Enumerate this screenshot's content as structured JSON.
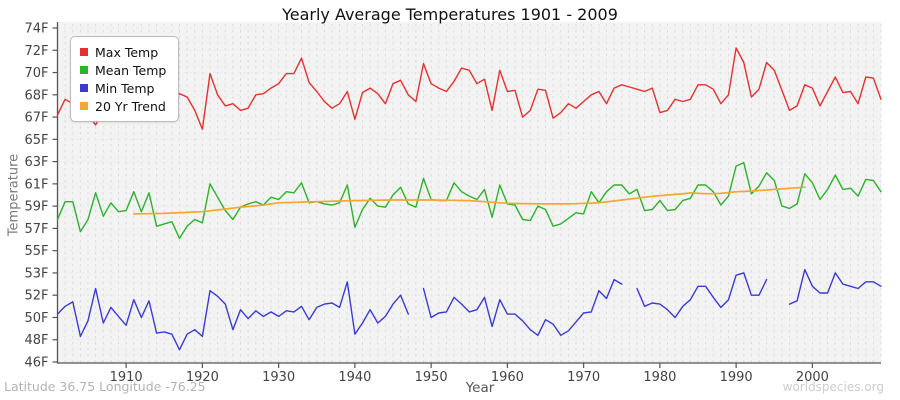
{
  "title": "Yearly Average Temperatures 1901 - 2009",
  "x_axis": {
    "label": "Year"
  },
  "y_axis": {
    "label": "Temperature"
  },
  "footer": {
    "left": "Latitude 36.75 Longitude -76.25",
    "right": "worldspecies.org"
  },
  "colors": {
    "page_bg": "#ffffff",
    "plot_bg": "#f3f3f3",
    "grid_v": "#dcdcdc",
    "grid_h": "#eaeaea",
    "axis": "#555555",
    "tick_text": "#444444",
    "legend_bg": "#ffffff",
    "legend_border": "#bbbbbb"
  },
  "chart_data": {
    "type": "line",
    "title": "Yearly Average Temperatures 1901 - 2009",
    "xlabel": "Year",
    "ylabel": "Temperature",
    "legend_position": "top-left",
    "grid": true,
    "x_start": 1901,
    "x_end": 2009,
    "x_step": 1,
    "x_ticks": [
      1910,
      1920,
      1930,
      1940,
      1950,
      1960,
      1970,
      1980,
      1990,
      2000
    ],
    "y_ticks": [
      74,
      72,
      70,
      68,
      67,
      65,
      63,
      61,
      59,
      57,
      55,
      53,
      52,
      50,
      48,
      46
    ],
    "y_tick_suffix": "F",
    "years": [
      1901,
      1902,
      1903,
      1904,
      1905,
      1906,
      1907,
      1908,
      1909,
      1910,
      1911,
      1912,
      1913,
      1914,
      1915,
      1916,
      1917,
      1918,
      1919,
      1920,
      1921,
      1922,
      1923,
      1924,
      1925,
      1926,
      1927,
      1928,
      1929,
      1930,
      1931,
      1932,
      1933,
      1934,
      1935,
      1936,
      1937,
      1938,
      1939,
      1940,
      1941,
      1942,
      1943,
      1944,
      1945,
      1946,
      1947,
      1948,
      1949,
      1950,
      1951,
      1952,
      1953,
      1954,
      1955,
      1956,
      1957,
      1958,
      1959,
      1960,
      1961,
      1962,
      1963,
      1964,
      1965,
      1966,
      1967,
      1968,
      1969,
      1970,
      1971,
      1972,
      1973,
      1974,
      1975,
      1976,
      1977,
      1978,
      1979,
      1980,
      1981,
      1982,
      1983,
      1984,
      1985,
      1986,
      1987,
      1988,
      1989,
      1990,
      1991,
      1992,
      1993,
      1994,
      1995,
      1996,
      1997,
      1998,
      1999,
      2000,
      2001,
      2002,
      2003,
      2004,
      2005,
      2006,
      2007,
      2008,
      2009
    ],
    "series": [
      {
        "name": "Max Temp",
        "color": "#e53030",
        "width": 1.4,
        "values": [
          67.1,
          67.8,
          67.6,
          67.9,
          67.1,
          66.3,
          67.3,
          67.9,
          68.3,
          67.6,
          67.4,
          68.1,
          68.0,
          68.3,
          67.9,
          67.7,
          68.1,
          67.9,
          67.3,
          65.9,
          69.9,
          68.0,
          67.5,
          67.6,
          67.3,
          67.4,
          68.0,
          68.1,
          68.6,
          69.0,
          69.9,
          69.9,
          71.3,
          69.1,
          68.3,
          67.7,
          67.4,
          67.6,
          68.3,
          66.8,
          68.2,
          68.6,
          68.1,
          67.6,
          69.0,
          69.3,
          68.0,
          67.7,
          70.8,
          69.0,
          68.6,
          68.3,
          69.2,
          70.4,
          70.2,
          69.0,
          69.4,
          67.3,
          70.2,
          68.3,
          68.4,
          67.0,
          67.3,
          68.5,
          68.4,
          66.9,
          67.2,
          67.6,
          67.4,
          67.7,
          68.0,
          68.3,
          67.6,
          68.6,
          68.9,
          68.7,
          68.5,
          68.3,
          68.6,
          67.2,
          67.3,
          67.8,
          67.7,
          67.8,
          68.9,
          68.9,
          68.5,
          67.6,
          68.0,
          72.2,
          70.9,
          67.9,
          68.5,
          70.9,
          70.2,
          68.4,
          67.3,
          67.5,
          68.9,
          68.6,
          67.5,
          68.3,
          69.6,
          68.2,
          68.3,
          67.6,
          69.6,
          69.5,
          67.8
        ]
      },
      {
        "name": "Mean Temp",
        "color": "#2db22d",
        "width": 1.4,
        "values": [
          57.8,
          59.4,
          59.4,
          56.7,
          57.8,
          60.2,
          58.1,
          59.3,
          58.5,
          58.6,
          60.3,
          58.5,
          60.2,
          57.2,
          57.4,
          57.6,
          56.1,
          57.2,
          57.8,
          57.5,
          61.0,
          59.8,
          58.6,
          57.8,
          58.9,
          59.2,
          59.4,
          59.1,
          59.8,
          59.6,
          60.3,
          60.2,
          61.1,
          59.3,
          59.4,
          59.2,
          59.1,
          59.3,
          60.9,
          57.1,
          58.7,
          59.7,
          59.0,
          58.9,
          60.0,
          60.7,
          59.2,
          58.9,
          61.5,
          59.6,
          59.5,
          59.5,
          61.1,
          60.3,
          59.9,
          59.6,
          60.5,
          58.0,
          60.9,
          59.2,
          59.1,
          57.8,
          57.7,
          59.0,
          58.7,
          57.2,
          57.4,
          57.9,
          58.4,
          58.3,
          60.3,
          59.3,
          60.3,
          60.9,
          60.9,
          60.1,
          60.5,
          58.6,
          58.7,
          59.5,
          58.6,
          58.7,
          59.5,
          59.7,
          60.9,
          60.9,
          60.3,
          59.1,
          59.9,
          62.6,
          62.9,
          60.1,
          60.8,
          62.0,
          61.3,
          59.0,
          58.8,
          59.2,
          61.9,
          61.1,
          59.6,
          60.5,
          61.8,
          60.5,
          60.6,
          59.9,
          61.4,
          61.3,
          60.3
        ]
      },
      {
        "name": "Min Temp",
        "color": "#3b3bd4",
        "width": 1.4,
        "values": [
          50.3,
          51.0,
          51.4,
          48.3,
          49.7,
          52.3,
          49.5,
          50.9,
          50.1,
          49.3,
          51.6,
          50.0,
          51.5,
          48.6,
          48.7,
          48.5,
          47.1,
          48.5,
          48.9,
          48.3,
          52.2,
          51.9,
          51.2,
          48.9,
          50.7,
          49.9,
          50.6,
          50.1,
          50.5,
          50.1,
          50.6,
          50.5,
          51.0,
          49.8,
          50.9,
          51.2,
          51.3,
          50.9,
          52.6,
          48.5,
          49.5,
          50.7,
          49.5,
          50.1,
          51.2,
          52.0,
          50.3,
          null,
          52.3,
          50.0,
          50.4,
          50.5,
          51.8,
          51.2,
          50.5,
          50.7,
          51.8,
          49.2,
          51.6,
          50.3,
          50.3,
          49.7,
          48.9,
          48.4,
          49.8,
          49.4,
          48.4,
          48.8,
          49.6,
          50.4,
          50.5,
          52.2,
          51.7,
          52.7,
          52.5,
          null,
          52.3,
          51.0,
          51.3,
          51.2,
          50.7,
          50.0,
          51.0,
          51.6,
          52.4,
          52.4,
          51.8,
          50.9,
          51.6,
          52.9,
          53.0,
          52.0,
          52.0,
          52.7,
          null,
          null,
          51.2,
          51.5,
          53.3,
          52.4,
          52.1,
          52.1,
          53.0,
          52.5,
          52.4,
          52.3,
          52.6,
          52.6,
          52.4
        ]
      },
      {
        "name": "20 Yr Trend",
        "color": "#f6a72f",
        "width": 1.7,
        "values": [
          null,
          null,
          null,
          null,
          null,
          null,
          null,
          null,
          null,
          null,
          58.3,
          58.31,
          58.32,
          58.34,
          58.35,
          58.38,
          58.41,
          58.44,
          58.47,
          58.5,
          58.58,
          58.66,
          58.74,
          58.82,
          58.9,
          58.97,
          59.03,
          59.1,
          59.2,
          59.3,
          59.32,
          59.34,
          59.36,
          59.38,
          59.4,
          59.42,
          59.44,
          59.46,
          59.48,
          59.5,
          59.51,
          59.52,
          59.53,
          59.54,
          59.55,
          59.55,
          59.55,
          59.55,
          59.55,
          59.55,
          59.54,
          59.53,
          59.52,
          59.51,
          59.5,
          59.45,
          59.4,
          59.35,
          59.3,
          59.25,
          59.24,
          59.23,
          59.22,
          59.21,
          59.2,
          59.2,
          59.2,
          59.2,
          59.22,
          59.25,
          59.27,
          59.3,
          59.38,
          59.46,
          59.55,
          59.63,
          59.71,
          59.8,
          59.87,
          59.95,
          60.0,
          60.05,
          60.1,
          60.2,
          60.15,
          60.12,
          60.12,
          60.15,
          60.22,
          60.3,
          60.32,
          60.35,
          60.4,
          60.45,
          60.5,
          60.55,
          60.6,
          60.65,
          60.7,
          null,
          null,
          null,
          null,
          null,
          null,
          null,
          null,
          null,
          null
        ]
      }
    ]
  }
}
